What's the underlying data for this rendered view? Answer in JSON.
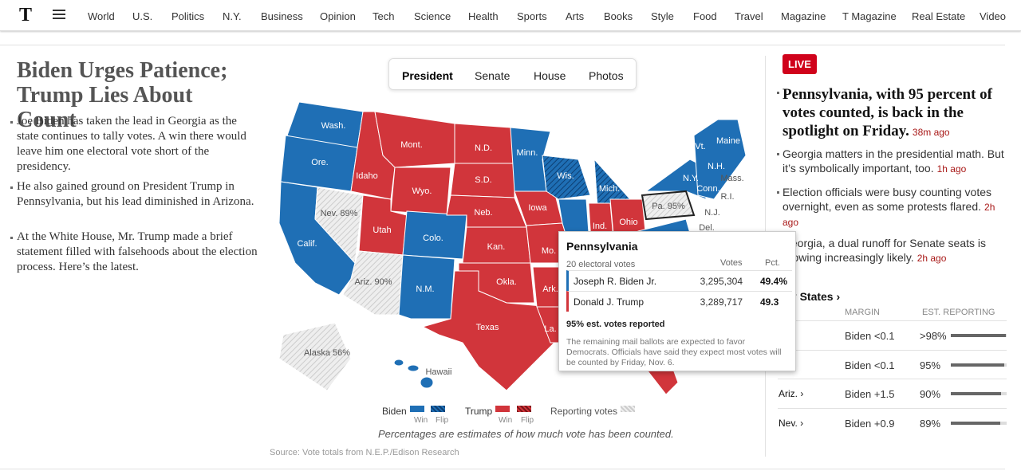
{
  "nav": {
    "logo": "T",
    "items": [
      "World",
      "U.S.",
      "Politics",
      "N.Y.",
      "Business",
      "Opinion",
      "Tech",
      "Science",
      "Health",
      "Sports",
      "Arts",
      "Books",
      "Style",
      "Food",
      "Travel",
      "Magazine",
      "T Magazine",
      "Real Estate",
      "Video"
    ]
  },
  "lead": {
    "headline": "Biden Urges Patience; Trump Lies About Count",
    "bullets": [
      "Joe Biden has taken the lead in Georgia as the state continues to tally votes. A win there would leave him one electoral vote short of the presidency.",
      "He also gained ground on President Trump in Pennsylvania, but his lead diminished in Arizona.",
      "At the White House, Mr. Trump made a brief statement filled with falsehoods about the election process. Here’s the latest."
    ]
  },
  "map": {
    "tabs": [
      "President",
      "Senate",
      "House",
      "Photos"
    ],
    "active_tab": 0,
    "state_labels": [
      "Wash.",
      "Ore.",
      "Calif.",
      "Idaho",
      "Nev. 89%",
      "Mont.",
      "Wyo.",
      "Utah",
      "Ariz. 90%",
      "Colo.",
      "N.M.",
      "N.D.",
      "S.D.",
      "Neb.",
      "Kan.",
      "Okla.",
      "Texas",
      "Minn.",
      "Iowa",
      "Mo.",
      "Ark.",
      "La.",
      "Wis.",
      "Mich.",
      "Ind.",
      "Ohio",
      "Pa. 95%",
      "N.Y.",
      "Vt.",
      "Maine",
      "N.H.",
      "Mass.",
      "Conn.",
      "R.I.",
      "N.J.",
      "Del.",
      "Alaska 56%",
      "Hawaii"
    ],
    "tooltip": {
      "state": "Pennsylvania",
      "electoral": "20 electoral votes",
      "votes_header": "Votes",
      "pct_header": "Pct.",
      "rows": [
        {
          "name": "Joseph R. Biden Jr.",
          "votes": "3,295,304",
          "pct": "49.4%",
          "color": "#1f6fb5"
        },
        {
          "name": "Donald J. Trump",
          "votes": "3,289,717",
          "pct": "49.3",
          "color": "#d1353b"
        }
      ],
      "est_reported": "95%",
      "est_text": "est. votes reported",
      "note": "The remaining mail ballots are expected to favor Democrats. Officials have said they expect most votes will be counted by Friday, Nov. 6."
    },
    "legend": {
      "biden": "Biden",
      "trump": "Trump",
      "win": "Win",
      "flip": "Flip",
      "reporting": "Reporting votes"
    },
    "caption": "Percentages are estimates of how much vote has been counted.",
    "source": "Source: Vote totals from N.E.P./Edison Research"
  },
  "live": {
    "badge": "LIVE",
    "items": [
      {
        "text": "Pennsylvania, with 95 percent of votes counted, is back in the spotlight on Friday.",
        "time": "38m ago"
      },
      {
        "text": "Georgia matters in the presidential math. But it’s symbolically important, too.",
        "time": "1h ago"
      },
      {
        "text": "Election officials were busy counting votes overnight, even as some protests flared.",
        "time": "2h ago"
      },
      {
        "text": "Georgia, a dual runoff for Senate seats is growing increasingly likely.",
        "time": "2h ago"
      }
    ],
    "key_states": {
      "title": "Key States ›",
      "columns": [
        "MARGIN",
        "EST. REPORTING"
      ],
      "rows": [
        {
          "state": "›",
          "margin": "Biden <0.1",
          "reporting": ">98%",
          "reporting_value": 98
        },
        {
          "state": "›",
          "margin": "Biden <0.1",
          "reporting": "95%",
          "reporting_value": 95
        },
        {
          "state": "Ariz. ›",
          "margin": "Biden +1.5",
          "reporting": "90%",
          "reporting_value": 90
        },
        {
          "state": "Nev. ›",
          "margin": "Biden +0.9",
          "reporting": "89%",
          "reporting_value": 89
        }
      ]
    }
  }
}
